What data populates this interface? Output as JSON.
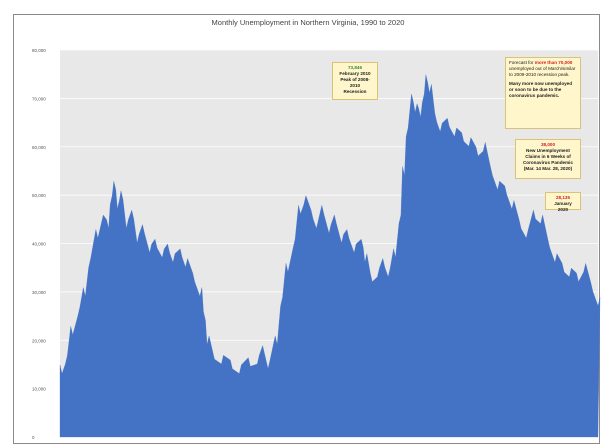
{
  "chart_data": {
    "type": "area",
    "title": "Monthly Unemployment in Northern Virginia, 1990 to 2020",
    "xlabel": "",
    "ylabel": "",
    "ylim": [
      0,
      80000
    ],
    "yticks": [
      0,
      10000,
      20000,
      30000,
      40000,
      50000,
      60000,
      70000,
      80000
    ],
    "ytick_labels": [
      "0",
      "10,000",
      "20,000",
      "30,000",
      "40,000",
      "50,000",
      "60,000",
      "70,000",
      "80,000"
    ],
    "grid": true,
    "color": "#4472c4",
    "plot_background": "#e8e8e8",
    "x_start": 1990,
    "x_end": 2020,
    "points": [
      [
        1990.0,
        14000
      ],
      [
        1990.3,
        16000
      ],
      [
        1990.6,
        22000
      ],
      [
        1991.0,
        26000
      ],
      [
        1991.3,
        30000
      ],
      [
        1991.6,
        36000
      ],
      [
        1992.0,
        42000
      ],
      [
        1992.3,
        45000
      ],
      [
        1992.6,
        44000
      ],
      [
        1992.8,
        49000
      ],
      [
        1993.0,
        52000
      ],
      [
        1993.2,
        48000
      ],
      [
        1993.4,
        50000
      ],
      [
        1993.7,
        44000
      ],
      [
        1994.0,
        46000
      ],
      [
        1994.3,
        41000
      ],
      [
        1994.6,
        43000
      ],
      [
        1995.0,
        39000
      ],
      [
        1995.3,
        40000
      ],
      [
        1995.7,
        38000
      ],
      [
        1996.0,
        39000
      ],
      [
        1996.3,
        37000
      ],
      [
        1996.7,
        38000
      ],
      [
        1997.0,
        36000
      ],
      [
        1997.4,
        33000
      ],
      [
        1997.8,
        30000
      ],
      [
        1998.0,
        25000
      ],
      [
        1998.2,
        20000
      ],
      [
        1998.5,
        17000
      ],
      [
        1999.0,
        16000
      ],
      [
        1999.5,
        15000
      ],
      [
        2000.0,
        14000
      ],
      [
        2000.5,
        15500
      ],
      [
        2001.0,
        16000
      ],
      [
        2001.3,
        18000
      ],
      [
        2001.6,
        15000
      ],
      [
        2002.0,
        20000
      ],
      [
        2002.3,
        28000
      ],
      [
        2002.6,
        35000
      ],
      [
        2003.0,
        40000
      ],
      [
        2003.3,
        47000
      ],
      [
        2003.6,
        49000
      ],
      [
        2004.0,
        46000
      ],
      [
        2004.3,
        44000
      ],
      [
        2004.6,
        47000
      ],
      [
        2005.0,
        43000
      ],
      [
        2005.3,
        45000
      ],
      [
        2005.7,
        41000
      ],
      [
        2006.0,
        42000
      ],
      [
        2006.4,
        39000
      ],
      [
        2006.8,
        40000
      ],
      [
        2007.0,
        37000
      ],
      [
        2007.3,
        33000
      ],
      [
        2007.7,
        34000
      ],
      [
        2008.0,
        36000
      ],
      [
        2008.3,
        34000
      ],
      [
        2008.6,
        38000
      ],
      [
        2008.9,
        45000
      ],
      [
        2009.1,
        55000
      ],
      [
        2009.3,
        63000
      ],
      [
        2009.6,
        70000
      ],
      [
        2009.8,
        68000
      ],
      [
        2010.0,
        67000
      ],
      [
        2010.2,
        70000
      ],
      [
        2010.4,
        74000
      ],
      [
        2010.6,
        72000
      ],
      [
        2010.9,
        66000
      ],
      [
        2011.2,
        64000
      ],
      [
        2011.6,
        65000
      ],
      [
        2012.0,
        63000
      ],
      [
        2012.4,
        62000
      ],
      [
        2012.8,
        61000
      ],
      [
        2013.2,
        59000
      ],
      [
        2013.6,
        60000
      ],
      [
        2014.0,
        55000
      ],
      [
        2014.4,
        52000
      ],
      [
        2014.8,
        51000
      ],
      [
        2015.2,
        48000
      ],
      [
        2015.6,
        44000
      ],
      [
        2016.0,
        42000
      ],
      [
        2016.4,
        46000
      ],
      [
        2016.8,
        45000
      ],
      [
        2017.2,
        40000
      ],
      [
        2017.6,
        37000
      ],
      [
        2018.0,
        35000
      ],
      [
        2018.4,
        34000
      ],
      [
        2018.8,
        33000
      ],
      [
        2019.2,
        35000
      ],
      [
        2019.6,
        31000
      ],
      [
        2020.0,
        28000
      ]
    ],
    "annotations": [
      {
        "id": "peak",
        "lines": [
          {
            "text": "73,846",
            "style": "hl"
          },
          {
            "text": "February 2010",
            "style": "bold"
          },
          {
            "text": "Peak of 2008-2010",
            "style": "bold"
          },
          {
            "text": "Recession",
            "style": "bold"
          }
        ]
      },
      {
        "id": "covid-claims",
        "paragraphs": [
          [
            {
              "text": "Forecast for ",
              "style": ""
            },
            {
              "text": "more than 70,000",
              "style": "red"
            },
            {
              "text": " unemployed out of March/",
              "style": ""
            },
            {
              "text": "similar to 2009-2010 recession",
              "style": ""
            },
            {
              "text": " peak.",
              "style": ""
            }
          ],
          [
            {
              "text": "Many more now unemployed or soon to be due to the coronavirus pandemic.",
              "style": "bold"
            }
          ]
        ]
      },
      {
        "id": "initial-claims",
        "lines": [
          {
            "text": "38,000",
            "style": "red"
          },
          {
            "text": "New Unemployment",
            "style": "bold"
          },
          {
            "text": "Claims in 6 Weeks of",
            "style": "bold"
          },
          {
            "text": "Coronavirus Pandemic",
            "style": "bold"
          },
          {
            "text": "(Mar. 14 Mar. 28, 2020)",
            "style": "bold"
          }
        ]
      },
      {
        "id": "jan-2020",
        "lines": [
          {
            "text": "28,135",
            "style": "red"
          },
          {
            "text": "January 2020",
            "style": "bold"
          }
        ]
      }
    ]
  }
}
